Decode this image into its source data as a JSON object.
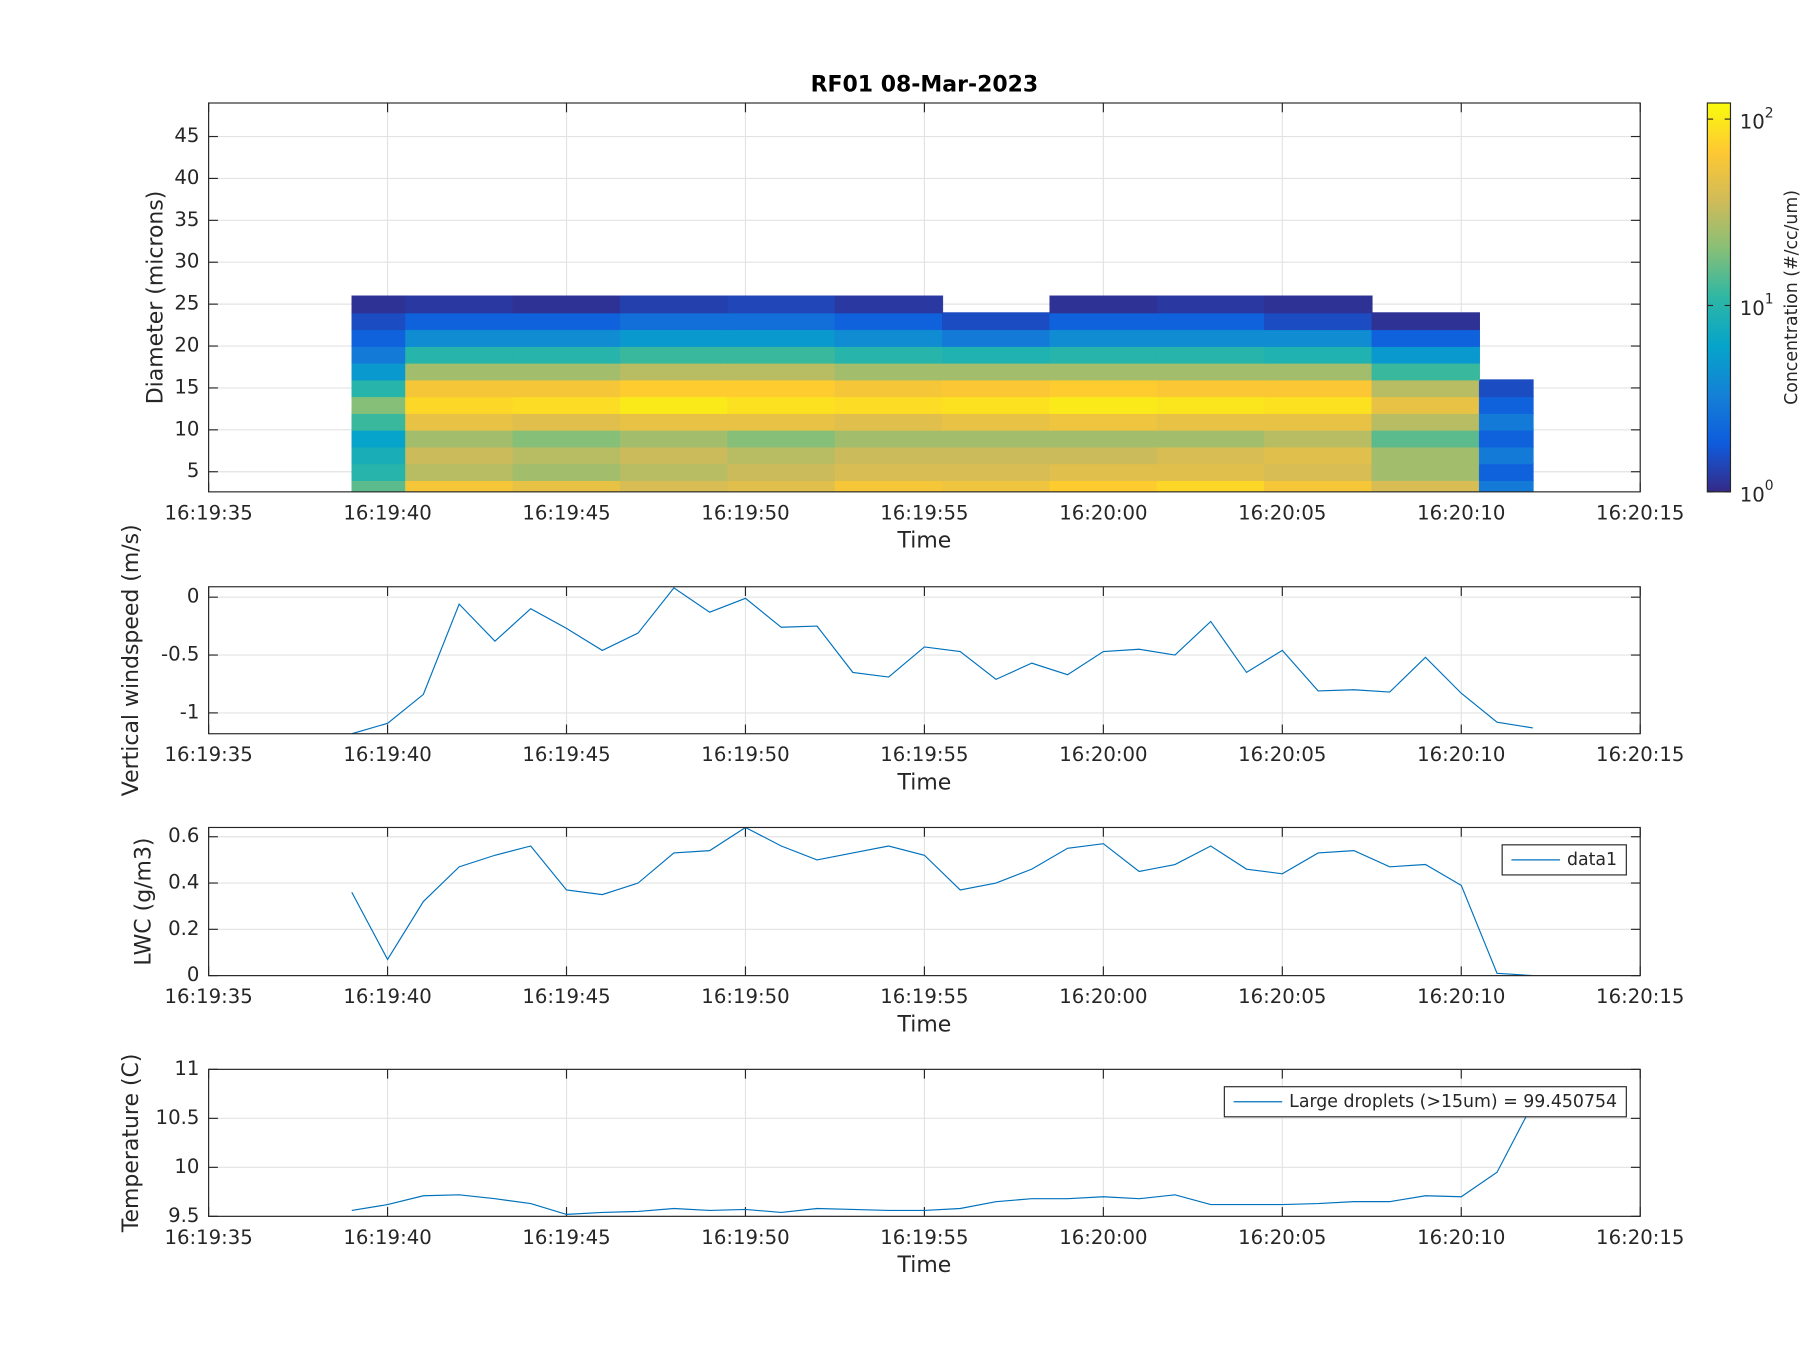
{
  "chart_data": [
    {
      "type": "contour",
      "title": "RF01 08-Mar-2023",
      "xlabel": "Time",
      "ylabel": "Diameter (microns)",
      "xlim": [
        "16:19:35",
        "16:20:15"
      ],
      "xticks": [
        "16:19:35",
        "16:19:40",
        "16:19:45",
        "16:19:50",
        "16:19:55",
        "16:20:00",
        "16:20:05",
        "16:20:10",
        "16:20:15"
      ],
      "ylim": [
        2.6,
        49
      ],
      "yticks": [
        5,
        10,
        15,
        20,
        25,
        30,
        35,
        40,
        45
      ],
      "grid": true,
      "x": [
        "16:19:39",
        "16:19:42",
        "16:19:45",
        "16:19:48",
        "16:19:51",
        "16:19:54",
        "16:19:57",
        "16:20:00",
        "16:20:03",
        "16:20:06",
        "16:20:09",
        "16:20:12"
      ],
      "y": [
        3,
        5,
        7,
        9,
        11,
        13,
        15,
        17,
        19,
        21,
        23,
        25
      ],
      "z": [
        [
          15,
          60,
          50,
          40,
          45,
          60,
          55,
          70,
          80,
          60,
          40,
          3
        ],
        [
          10,
          30,
          25,
          30,
          35,
          40,
          40,
          45,
          45,
          40,
          25,
          2
        ],
        [
          8,
          35,
          30,
          35,
          30,
          35,
          35,
          35,
          40,
          45,
          25,
          3
        ],
        [
          6,
          25,
          20,
          25,
          20,
          25,
          25,
          25,
          25,
          30,
          15,
          2
        ],
        [
          12,
          50,
          45,
          50,
          50,
          45,
          50,
          55,
          50,
          50,
          30,
          3
        ],
        [
          20,
          80,
          85,
          100,
          90,
          85,
          90,
          100,
          95,
          90,
          50,
          2
        ],
        [
          10,
          60,
          60,
          70,
          70,
          60,
          65,
          70,
          65,
          65,
          30,
          1.5
        ],
        [
          5,
          25,
          25,
          30,
          30,
          25,
          25,
          25,
          25,
          25,
          12,
          null
        ],
        [
          3,
          10,
          10,
          12,
          12,
          10,
          9,
          10,
          10,
          9,
          5,
          null
        ],
        [
          2,
          4,
          4,
          5,
          5,
          4,
          3,
          4,
          4,
          4,
          2,
          null
        ],
        [
          1.5,
          2,
          2,
          2.5,
          2.5,
          2,
          1.5,
          2,
          2,
          1.5,
          1.1,
          null
        ],
        [
          1.1,
          1.2,
          1.1,
          1.3,
          1.4,
          1.2,
          null,
          1.1,
          1.2,
          1.1,
          null,
          null
        ]
      ],
      "colorscale": "log",
      "clim": [
        1,
        122
      ],
      "cticks": [
        {
          "value": 1,
          "label": "10",
          "exponent": "0"
        },
        {
          "value": 10,
          "label": "10",
          "exponent": "1"
        },
        {
          "value": 100,
          "label": "10",
          "exponent": "2"
        }
      ],
      "clabel": "Concentration (#/cc/um)",
      "colormap": [
        "#352a87",
        "#0f5cdd",
        "#1481d6",
        "#06a4ca",
        "#2eb7a4",
        "#87bf77",
        "#d1bb59",
        "#fec832",
        "#f9fb0e"
      ]
    },
    {
      "type": "line",
      "xlabel": "Time",
      "ylabel": "Vertical windspeed (m/s)",
      "xlim": [
        "16:19:35",
        "16:20:15"
      ],
      "xticks": [
        "16:19:35",
        "16:19:40",
        "16:19:45",
        "16:19:50",
        "16:19:55",
        "16:20:00",
        "16:20:05",
        "16:20:10",
        "16:20:15"
      ],
      "ylim": [
        -1.18,
        0.09
      ],
      "yticks": [
        -1,
        -0.5,
        0
      ],
      "grid": true,
      "x": [
        "16:19:39",
        "16:19:40",
        "16:19:41",
        "16:19:42",
        "16:19:43",
        "16:19:44",
        "16:19:45",
        "16:19:46",
        "16:19:47",
        "16:19:48",
        "16:19:49",
        "16:19:50",
        "16:19:51",
        "16:19:52",
        "16:19:53",
        "16:19:54",
        "16:19:55",
        "16:19:56",
        "16:19:57",
        "16:19:58",
        "16:19:59",
        "16:20:00",
        "16:20:01",
        "16:20:02",
        "16:20:03",
        "16:20:04",
        "16:20:05",
        "16:20:06",
        "16:20:07",
        "16:20:08",
        "16:20:09",
        "16:20:10",
        "16:20:11",
        "16:20:12"
      ],
      "series": [
        {
          "color": "#0072bd",
          "values": [
            -1.18,
            -1.09,
            -0.84,
            -0.06,
            -0.38,
            -0.1,
            -0.27,
            -0.46,
            -0.31,
            0.08,
            -0.13,
            -0.01,
            -0.26,
            -0.25,
            -0.65,
            -0.69,
            -0.43,
            -0.47,
            -0.71,
            -0.57,
            -0.67,
            -0.47,
            -0.45,
            -0.5,
            -0.21,
            -0.65,
            -0.46,
            -0.81,
            -0.8,
            -0.82,
            -0.52,
            -0.83,
            -1.08,
            -1.13
          ]
        }
      ]
    },
    {
      "type": "line",
      "xlabel": "Time",
      "ylabel": "LWC (g/m3)",
      "xlim": [
        "16:19:35",
        "16:20:15"
      ],
      "xticks": [
        "16:19:35",
        "16:19:40",
        "16:19:45",
        "16:19:50",
        "16:19:55",
        "16:20:00",
        "16:20:05",
        "16:20:10",
        "16:20:15"
      ],
      "ylim": [
        0,
        0.64
      ],
      "yticks": [
        0,
        0.2,
        0.4,
        0.6
      ],
      "grid": true,
      "legend": "upper right",
      "x": [
        "16:19:39",
        "16:19:40",
        "16:19:41",
        "16:19:42",
        "16:19:43",
        "16:19:44",
        "16:19:45",
        "16:19:46",
        "16:19:47",
        "16:19:48",
        "16:19:49",
        "16:19:50",
        "16:19:51",
        "16:19:52",
        "16:19:53",
        "16:19:54",
        "16:19:55",
        "16:19:56",
        "16:19:57",
        "16:19:58",
        "16:19:59",
        "16:20:00",
        "16:20:01",
        "16:20:02",
        "16:20:03",
        "16:20:04",
        "16:20:05",
        "16:20:06",
        "16:20:07",
        "16:20:08",
        "16:20:09",
        "16:20:10",
        "16:20:11",
        "16:20:12"
      ],
      "series": [
        {
          "name": "data1",
          "color": "#0072bd",
          "values": [
            0.36,
            0.07,
            0.32,
            0.47,
            0.52,
            0.56,
            0.37,
            0.35,
            0.4,
            0.53,
            0.54,
            0.64,
            0.56,
            0.5,
            0.53,
            0.56,
            0.52,
            0.37,
            0.4,
            0.46,
            0.55,
            0.57,
            0.45,
            0.48,
            0.56,
            0.46,
            0.44,
            0.53,
            0.54,
            0.47,
            0.48,
            0.39,
            0.01,
            0
          ]
        }
      ]
    },
    {
      "type": "line",
      "xlabel": "Time",
      "ylabel": "Temperature (C)",
      "xlim": [
        "16:19:35",
        "16:20:15"
      ],
      "xticks": [
        "16:19:35",
        "16:19:40",
        "16:19:45",
        "16:19:50",
        "16:19:55",
        "16:20:00",
        "16:20:05",
        "16:20:10",
        "16:20:15"
      ],
      "ylim": [
        9.5,
        11
      ],
      "yticks": [
        9.5,
        10,
        10.5,
        11
      ],
      "grid": true,
      "legend": "upper right",
      "x": [
        "16:19:39",
        "16:19:40",
        "16:19:41",
        "16:19:42",
        "16:19:43",
        "16:19:44",
        "16:19:45",
        "16:19:46",
        "16:19:47",
        "16:19:48",
        "16:19:49",
        "16:19:50",
        "16:19:51",
        "16:19:52",
        "16:19:53",
        "16:19:54",
        "16:19:55",
        "16:19:56",
        "16:19:57",
        "16:19:58",
        "16:19:59",
        "16:20:00",
        "16:20:01",
        "16:20:02",
        "16:20:03",
        "16:20:04",
        "16:20:05",
        "16:20:06",
        "16:20:07",
        "16:20:08",
        "16:20:09",
        "16:20:10",
        "16:20:11",
        "16:20:12"
      ],
      "series": [
        {
          "name": "Large droplets (>15um) = 99.450754",
          "color": "#0072bd",
          "values": [
            9.56,
            9.62,
            9.71,
            9.72,
            9.68,
            9.63,
            9.52,
            9.54,
            9.55,
            9.58,
            9.56,
            9.57,
            9.54,
            9.58,
            9.57,
            9.56,
            9.56,
            9.58,
            9.65,
            9.68,
            9.68,
            9.7,
            9.68,
            9.72,
            9.62,
            9.62,
            9.62,
            9.63,
            9.65,
            9.65,
            9.71,
            9.7,
            9.95,
            10.65
          ]
        }
      ]
    }
  ]
}
